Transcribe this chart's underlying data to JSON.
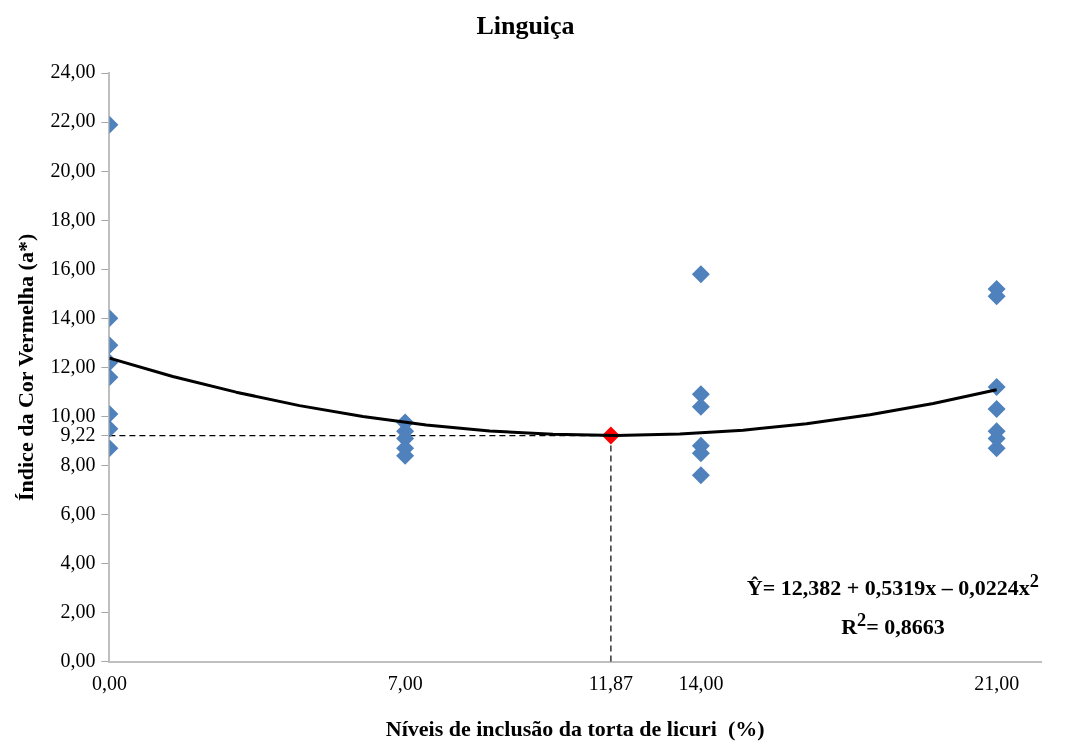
{
  "chart_data": {
    "type": "scatter",
    "title": "Linguiça",
    "xlabel": "Níveis de inclusão da torta de licuri  (%)",
    "ylabel": "Índice da Cor Vermelha (a*)",
    "xlim": [
      0,
      22.05
    ],
    "ylim": [
      0,
      24
    ],
    "xticks": [
      {
        "value": 0,
        "label": "0,00"
      },
      {
        "value": 7,
        "label": "7,00"
      },
      {
        "value": 11.87,
        "label": "11,87"
      },
      {
        "value": 14,
        "label": "14,00"
      },
      {
        "value": 21,
        "label": "21,00"
      }
    ],
    "yticks": [
      {
        "value": 0,
        "label": "0,00"
      },
      {
        "value": 2,
        "label": "2,00"
      },
      {
        "value": 4,
        "label": "4,00"
      },
      {
        "value": 6,
        "label": "6,00"
      },
      {
        "value": 8,
        "label": "8,00"
      },
      {
        "value": 9.22,
        "label": "9,22"
      },
      {
        "value": 10,
        "label": "10,00"
      },
      {
        "value": 12,
        "label": "12,00"
      },
      {
        "value": 14,
        "label": "14,00"
      },
      {
        "value": 16,
        "label": "16,00"
      },
      {
        "value": 18,
        "label": "18,00"
      },
      {
        "value": 20,
        "label": "20,00"
      },
      {
        "value": 22,
        "label": "22,00"
      },
      {
        "value": 24,
        "label": "24,00"
      }
    ],
    "grid": false,
    "legend": false,
    "marker": "diamond",
    "series": [
      {
        "color": "#4f81bd",
        "x": [
          0,
          0,
          0,
          0,
          0,
          0,
          0,
          0,
          7,
          7,
          7,
          7,
          7,
          14,
          14,
          14,
          14,
          14,
          14,
          21,
          21,
          21,
          21,
          21,
          21,
          21
        ],
        "values": [
          21.9,
          14.0,
          12.9,
          12.2,
          11.6,
          10.1,
          9.5,
          8.7,
          9.75,
          9.4,
          9.1,
          8.7,
          8.4,
          15.8,
          10.9,
          10.4,
          8.8,
          8.5,
          7.6,
          15.2,
          14.9,
          11.2,
          10.3,
          9.4,
          9.1,
          8.7
        ]
      },
      {
        "color": "#ff0000",
        "x": [
          11.87
        ],
        "values": [
          9.22
        ]
      },
      {
        "type": "line",
        "color": "#000000",
        "marker": "none",
        "line_style": "solid",
        "x": [
          0,
          1.5,
          3,
          4.5,
          6,
          7.5,
          9,
          10.5,
          12,
          13.5,
          15,
          16.5,
          18,
          19.5,
          21
        ],
        "values": [
          12.38,
          11.63,
          10.99,
          10.44,
          10.0,
          9.65,
          9.41,
          9.27,
          9.22,
          9.28,
          9.44,
          9.7,
          10.07,
          10.53,
          11.09
        ]
      }
    ],
    "ref_lines": [
      {
        "axis": "x",
        "value": 11.87,
        "color": "#000000",
        "line_style": "dashed"
      },
      {
        "axis": "y",
        "value": 9.22,
        "color": "#000000",
        "line_style": "dashed"
      }
    ],
    "annotations": [
      "Ŷ= 12,382 + 0,5319x – 0,0224x$^{2}$",
      "R$^{2}$= 0,8663"
    ]
  }
}
